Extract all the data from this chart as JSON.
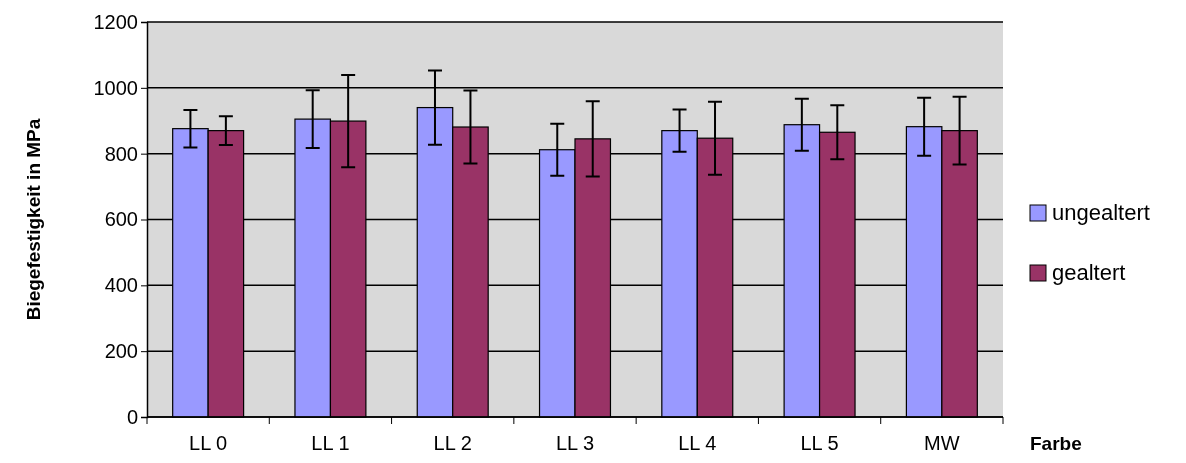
{
  "chart_data": {
    "type": "bar",
    "ylabel": "Biegefestigkeit  in MPa",
    "xlabel": "Farbe",
    "categories": [
      "LL 0",
      "LL 1",
      "LL 2",
      "LL 3",
      "LL 4",
      "LL 5",
      "MW"
    ],
    "series": [
      {
        "name": "ungealtert",
        "color": "#9999ff",
        "values": [
          876,
          905,
          940,
          812,
          870,
          888,
          882
        ],
        "errors": [
          57,
          88,
          113,
          79,
          64,
          79,
          88
        ]
      },
      {
        "name": "gealtert",
        "color": "#993366",
        "values": [
          870,
          899,
          881,
          845,
          847,
          865,
          870
        ],
        "errors": [
          44,
          140,
          111,
          114,
          111,
          82,
          103
        ]
      }
    ],
    "ylim": [
      0,
      1200
    ],
    "yticks": [
      0,
      200,
      400,
      600,
      800,
      1000,
      1200
    ],
    "grid": "y",
    "legend": "right"
  }
}
